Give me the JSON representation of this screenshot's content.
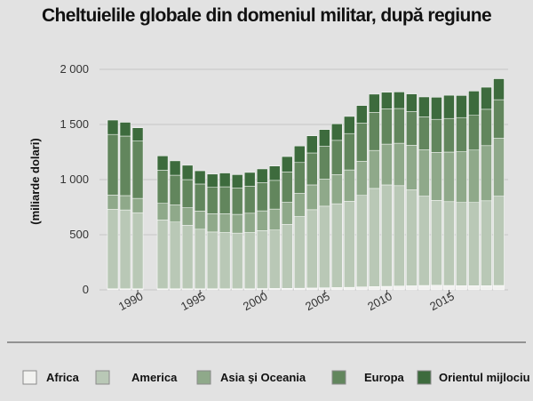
{
  "chart_data": {
    "type": "bar",
    "stacked": true,
    "title": "Cheltuielile globale din domeniul militar, după regiune",
    "ylabel": "(miliarde dolari)",
    "xlabel": "",
    "ylim": [
      0,
      2000
    ],
    "y_ticks": [
      0,
      500,
      1000,
      1500,
      2000
    ],
    "y_tick_labels": [
      "0",
      "500",
      "1 000",
      "1 500",
      "2 000"
    ],
    "x_ticks": [
      1990,
      1995,
      2000,
      2005,
      2010,
      2015
    ],
    "x_tick_labels": [
      "1990",
      "1995",
      "2000",
      "2005",
      "2010",
      "2015"
    ],
    "grid": true,
    "legend_position": "bottom",
    "x": [
      1988,
      1989,
      1990,
      1992,
      1993,
      1994,
      1995,
      1996,
      1997,
      1998,
      1999,
      2000,
      2001,
      2002,
      2003,
      2004,
      2005,
      2006,
      2007,
      2008,
      2009,
      2010,
      2011,
      2012,
      2013,
      2014,
      2015,
      2016,
      2017,
      2018,
      2019
    ],
    "series": [
      {
        "name": "Africa",
        "color": "#f2f2f0",
        "values": [
          10,
          10,
          10,
          10,
          10,
          10,
          10,
          10,
          10,
          10,
          10,
          12,
          13,
          14,
          15,
          17,
          19,
          21,
          23,
          27,
          30,
          32,
          35,
          37,
          40,
          42,
          40,
          38,
          38,
          38,
          40
        ]
      },
      {
        "name": "America",
        "color": "#b9c8b6",
        "values": [
          720,
          715,
          690,
          625,
          605,
          575,
          540,
          515,
          510,
          505,
          510,
          525,
          530,
          580,
          650,
          710,
          740,
          760,
          780,
          830,
          890,
          920,
          910,
          870,
          810,
          770,
          760,
          755,
          755,
          770,
          810
        ]
      },
      {
        "name": "Asia şi Oceania",
        "color": "#8fa98a",
        "values": [
          130,
          130,
          130,
          150,
          155,
          160,
          165,
          165,
          170,
          170,
          175,
          180,
          190,
          200,
          210,
          225,
          245,
          265,
          285,
          310,
          345,
          370,
          385,
          405,
          420,
          435,
          450,
          460,
          475,
          500,
          525
        ]
      },
      {
        "name": "Europa",
        "color": "#62865d",
        "values": [
          550,
          540,
          520,
          300,
          270,
          255,
          245,
          240,
          245,
          240,
          245,
          255,
          260,
          275,
          280,
          290,
          300,
          310,
          330,
          345,
          345,
          320,
          315,
          305,
          300,
          300,
          305,
          310,
          315,
          330,
          350
        ]
      },
      {
        "name": "Orientul mijlociu",
        "color": "#3d6b3d",
        "values": [
          130,
          125,
          120,
          130,
          130,
          130,
          120,
          120,
          125,
          120,
          125,
          125,
          130,
          140,
          150,
          155,
          150,
          150,
          155,
          160,
          165,
          150,
          150,
          160,
          180,
          200,
          210,
          200,
          220,
          200,
          190
        ]
      }
    ]
  }
}
